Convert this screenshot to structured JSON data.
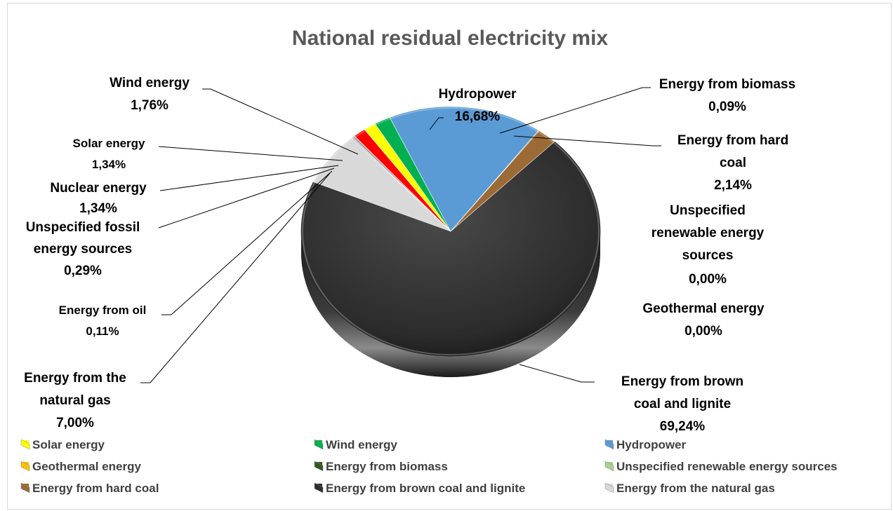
{
  "chart_data": {
    "type": "pie",
    "title": "National residual electricity mix",
    "slices": [
      {
        "name": "Energy from brown coal and lignite",
        "value": 69.24,
        "label": "69,24%",
        "color": "#2e2e2e"
      },
      {
        "name": "Energy from the natural gas",
        "value": 7.0,
        "label": "7,00%",
        "color": "#d9d9d9"
      },
      {
        "name": "Energy from oil",
        "value": 0.11,
        "label": "0,11%",
        "color": "#7f7f7f"
      },
      {
        "name": "Unspecified fossil energy sources",
        "value": 0.29,
        "label": "0,29%",
        "color": "#a6a6a6"
      },
      {
        "name": "Nuclear energy",
        "value": 1.34,
        "label": "1,34%",
        "color": "#ff0000"
      },
      {
        "name": "Solar energy",
        "value": 1.34,
        "label": "1,34%",
        "color": "#ffff00"
      },
      {
        "name": "Wind energy",
        "value": 1.76,
        "label": "1,76%",
        "color": "#00b050"
      },
      {
        "name": "Hydropower",
        "value": 16.68,
        "label": "16,68%",
        "color": "#5b9bd5"
      },
      {
        "name": "Energy from biomass",
        "value": 0.09,
        "label": "0,09%",
        "color": "#375623"
      },
      {
        "name": "Energy from hard coal",
        "value": 2.14,
        "label": "2,14%",
        "color": "#9c6a35"
      },
      {
        "name": "Unspecified renewable energy sources",
        "value": 0.0,
        "label": "0,00%",
        "color": "#a9d18e"
      },
      {
        "name": "Geothermal energy",
        "value": 0.0,
        "label": "0,00%",
        "color": "#ffc000"
      }
    ],
    "legend": {
      "placement": "bottom",
      "items": [
        {
          "name": "Solar energy",
          "color": "#ffff00"
        },
        {
          "name": "Wind energy",
          "color": "#00b050"
        },
        {
          "name": "Hydropower",
          "color": "#5b9bd5"
        },
        {
          "name": "Geothermal energy",
          "color": "#ffc000"
        },
        {
          "name": "Energy from biomass",
          "color": "#375623"
        },
        {
          "name": "Unspecified renewable energy sources",
          "color": "#a9d18e"
        },
        {
          "name": "Energy from hard coal",
          "color": "#9c6a35"
        },
        {
          "name": "Energy from brown coal and lignite",
          "color": "#2e2e2e"
        },
        {
          "name": "Energy from the natural gas",
          "color": "#d9d9d9"
        }
      ]
    }
  }
}
